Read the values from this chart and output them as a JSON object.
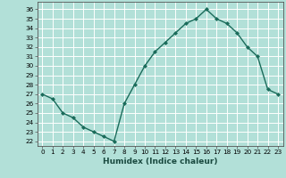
{
  "x": [
    0,
    1,
    2,
    3,
    4,
    5,
    6,
    7,
    8,
    9,
    10,
    11,
    12,
    13,
    14,
    15,
    16,
    17,
    18,
    19,
    20,
    21,
    22,
    23
  ],
  "y": [
    27,
    26.5,
    25,
    24.5,
    23.5,
    23,
    22.5,
    22,
    26,
    28,
    30,
    31.5,
    32.5,
    33.5,
    34.5,
    35,
    36,
    35,
    34.5,
    33.5,
    32,
    31,
    27.5,
    27
  ],
  "line_color": "#1a6b5a",
  "marker": "D",
  "marker_size": 2,
  "bg_color": "#b2e0d8",
  "grid_color": "#ffffff",
  "xlabel": "Humidex (Indice chaleur)",
  "ylim": [
    21.5,
    36.8
  ],
  "xlim": [
    -0.5,
    23.5
  ],
  "yticks": [
    22,
    23,
    24,
    25,
    26,
    27,
    28,
    29,
    30,
    31,
    32,
    33,
    34,
    35,
    36
  ],
  "xticks": [
    0,
    1,
    2,
    3,
    4,
    5,
    6,
    7,
    8,
    9,
    10,
    11,
    12,
    13,
    14,
    15,
    16,
    17,
    18,
    19,
    20,
    21,
    22,
    23
  ],
  "xtick_labels": [
    "0",
    "1",
    "2",
    "3",
    "4",
    "5",
    "6",
    "7",
    "8",
    "9",
    "10",
    "11",
    "12",
    "13",
    "14",
    "15",
    "16",
    "17",
    "18",
    "19",
    "20",
    "21",
    "22",
    "23"
  ],
  "ytick_labels": [
    "22",
    "23",
    "24",
    "25",
    "26",
    "27",
    "28",
    "29",
    "30",
    "31",
    "32",
    "33",
    "34",
    "35",
    "36"
  ],
  "xlabel_fontsize": 6.5,
  "tick_fontsize": 5.2,
  "line_width": 1.0
}
